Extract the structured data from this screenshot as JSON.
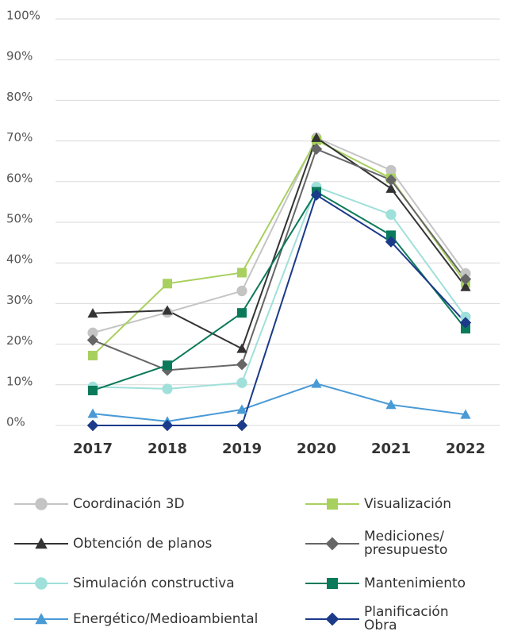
{
  "chart_data": {
    "type": "line",
    "categories": [
      "2017",
      "2018",
      "2019",
      "2020",
      "2021",
      "2022"
    ],
    "ylim": [
      0,
      100
    ],
    "yticks": [
      {
        "value": 0,
        "label": "0%"
      },
      {
        "value": 10,
        "label": "10%"
      },
      {
        "value": 20,
        "label": "20%"
      },
      {
        "value": 30,
        "label": "30%"
      },
      {
        "value": 40,
        "label": "40%"
      },
      {
        "value": 50,
        "label": "50%"
      },
      {
        "value": 60,
        "label": "60%"
      },
      {
        "value": 70,
        "label": "70%"
      },
      {
        "value": 80,
        "label": "80%"
      },
      {
        "value": 90,
        "label": "90%"
      },
      {
        "value": 100,
        "label": "100%"
      }
    ],
    "grid": true,
    "series": [
      {
        "name": "Coordinación 3D",
        "color": "#c4c4c4",
        "marker": "circle",
        "values": [
          22.8,
          27.8,
          33.1,
          70.8,
          62.8,
          37.4
        ]
      },
      {
        "name": "Visualización",
        "color": "#a8d05e",
        "marker": "square",
        "values": [
          17.2,
          34.9,
          37.6,
          70.2,
          60.8,
          35.1
        ]
      },
      {
        "name": "Obtención de planos",
        "color": "#333333",
        "marker": "triangle",
        "values": [
          27.6,
          28.3,
          18.9,
          70.8,
          58.3,
          34.1
        ]
      },
      {
        "name": "Mediciones/ presupuesto",
        "color": "#666666",
        "marker": "diamond",
        "values": [
          21.0,
          13.6,
          15.0,
          68.0,
          60.4,
          36.0
        ]
      },
      {
        "name": "Simulación constructiva",
        "color": "#9fe0da",
        "marker": "circle",
        "values": [
          9.5,
          9.0,
          10.5,
          58.7,
          51.9,
          26.7
        ]
      },
      {
        "name": "Mantenimiento",
        "color": "#0b7a5a",
        "marker": "square",
        "values": [
          8.6,
          14.8,
          27.7,
          57.5,
          46.8,
          23.8
        ]
      },
      {
        "name": "Energético/Medioambiental",
        "color": "#4a9ad6",
        "marker": "triangle",
        "values": [
          2.9,
          1.0,
          3.9,
          10.3,
          5.1,
          2.7
        ]
      },
      {
        "name": "Planificación Obra",
        "color": "#1b3a8a",
        "marker": "diamond",
        "values": [
          0,
          0,
          0,
          56.7,
          45.2,
          25.3
        ]
      }
    ]
  }
}
